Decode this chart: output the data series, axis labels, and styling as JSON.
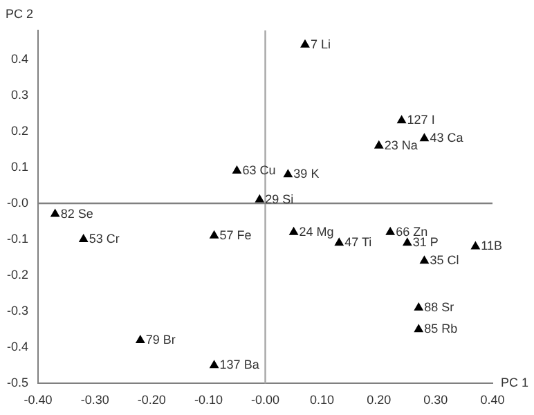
{
  "chart_data": {
    "type": "scatter",
    "xlabel": "PC 1",
    "ylabel": "PC 2",
    "marker": "triangle",
    "grid": false,
    "legend": false,
    "xlim": [
      -0.4,
      0.4
    ],
    "ylim": [
      -0.5,
      0.48
    ],
    "xticks": [
      {
        "value": -0.4,
        "label": "-0.40"
      },
      {
        "value": -0.3,
        "label": "-0.30"
      },
      {
        "value": -0.2,
        "label": "-0.20"
      },
      {
        "value": -0.1,
        "label": "-0.10"
      },
      {
        "value": 0,
        "label": "-0.00"
      },
      {
        "value": 0.1,
        "label": "0.10"
      },
      {
        "value": 0.2,
        "label": "0.20"
      },
      {
        "value": 0.3,
        "label": "0.30"
      },
      {
        "value": 0.4,
        "label": "0.40"
      }
    ],
    "yticks": [
      -0.5,
      -0.4,
      -0.3,
      -0.2,
      -0.1,
      {
        "value": 0,
        "label": "-0.0"
      },
      0.1,
      0.2,
      0.3,
      0.4
    ],
    "ref_lines": [
      {
        "axis": "x",
        "value": 0,
        "color": "#a6a6a6"
      },
      {
        "axis": "y",
        "value": 0,
        "color": "#808080"
      }
    ],
    "series": [
      {
        "color": "#000000",
        "x": [
          0.07,
          0.24,
          0.28,
          0.2,
          0.04,
          -0.01,
          -0.05,
          -0.37,
          -0.32,
          -0.09,
          -0.22,
          -0.09,
          0.05,
          0.13,
          0.22,
          0.25,
          0.37,
          0.28,
          0.27,
          0.27
        ],
        "values": [
          0.44,
          0.23,
          0.18,
          0.16,
          0.08,
          0.01,
          0.09,
          -0.03,
          -0.1,
          -0.09,
          -0.38,
          -0.45,
          -0.08,
          -0.11,
          -0.08,
          -0.11,
          -0.12,
          -0.16,
          -0.29,
          -0.35
        ]
      }
    ],
    "annotations": [
      {
        "text": "7 Li",
        "x": 0.07,
        "y": 0.44
      },
      {
        "text": "127 I",
        "x": 0.24,
        "y": 0.23
      },
      {
        "text": "43 Ca",
        "x": 0.28,
        "y": 0.18
      },
      {
        "text": "23 Na",
        "x": 0.2,
        "y": 0.16
      },
      {
        "text": "39 K",
        "x": 0.04,
        "y": 0.08
      },
      {
        "text": "29 Si",
        "x": -0.01,
        "y": 0.01
      },
      {
        "text": "63 Cu",
        "x": -0.05,
        "y": 0.09
      },
      {
        "text": "82 Se",
        "x": -0.37,
        "y": -0.03
      },
      {
        "text": "53 Cr",
        "x": -0.32,
        "y": -0.1
      },
      {
        "text": "57 Fe",
        "x": -0.09,
        "y": -0.09
      },
      {
        "text": "79 Br",
        "x": -0.22,
        "y": -0.38
      },
      {
        "text": "137 Ba",
        "x": -0.09,
        "y": -0.45
      },
      {
        "text": "24 Mg",
        "x": 0.05,
        "y": -0.08
      },
      {
        "text": "47 Ti",
        "x": 0.13,
        "y": -0.11
      },
      {
        "text": "66 Zn",
        "x": 0.22,
        "y": -0.08
      },
      {
        "text": "31 P",
        "x": 0.25,
        "y": -0.11
      },
      {
        "text": "11B",
        "x": 0.37,
        "y": -0.12
      },
      {
        "text": "35 Cl",
        "x": 0.28,
        "y": -0.16
      },
      {
        "text": "88 Sr",
        "x": 0.27,
        "y": -0.29
      },
      {
        "text": "85 Rb",
        "x": 0.27,
        "y": -0.35
      }
    ]
  }
}
